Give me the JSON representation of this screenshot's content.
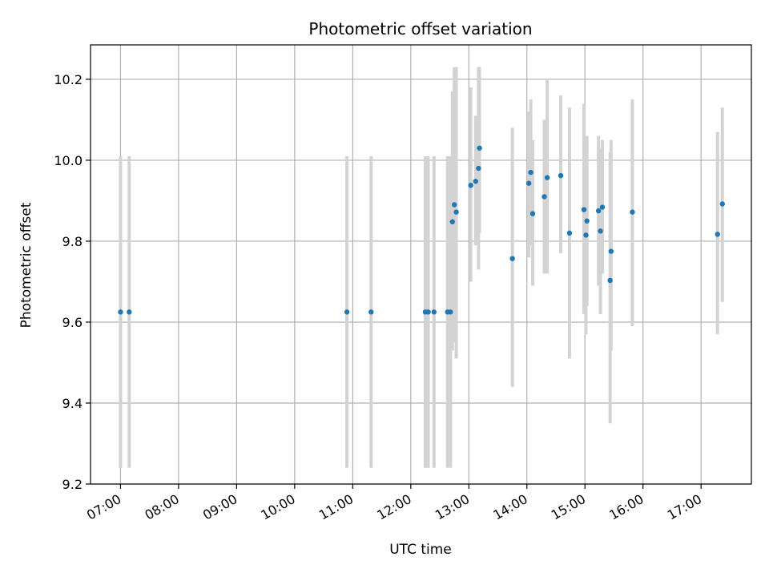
{
  "chart_data": {
    "type": "scatter",
    "title": "Photometric offset variation",
    "xlabel": "UTC time",
    "ylabel": "Photometric offset",
    "x_ticks": [
      "07:00",
      "08:00",
      "09:00",
      "10:00",
      "11:00",
      "12:00",
      "13:00",
      "14:00",
      "15:00",
      "16:00",
      "17:00"
    ],
    "y_ticks": [
      "9.2",
      "9.4",
      "9.6",
      "9.8",
      "10.0",
      "10.2"
    ],
    "xlim": [
      "06:29",
      "17:52"
    ],
    "ylim": [
      9.2,
      10.285
    ],
    "grid": true,
    "colors": {
      "points": "#1f77b4",
      "errorbars": "#d3d3d3",
      "grid": "#b0b0b0"
    },
    "points": [
      {
        "x": "07:00",
        "y": 9.625,
        "ylow": 9.24,
        "yhigh": 10.01
      },
      {
        "x": "07:09",
        "y": 9.625,
        "ylow": 9.24,
        "yhigh": 10.01
      },
      {
        "x": "10:54",
        "y": 9.625,
        "ylow": 9.24,
        "yhigh": 10.01
      },
      {
        "x": "11:19",
        "y": 9.625,
        "ylow": 9.24,
        "yhigh": 10.01
      },
      {
        "x": "12:15",
        "y": 9.625,
        "ylow": 9.24,
        "yhigh": 10.01
      },
      {
        "x": "12:18",
        "y": 9.625,
        "ylow": 9.24,
        "yhigh": 10.01
      },
      {
        "x": "12:24",
        "y": 9.625,
        "ylow": 9.24,
        "yhigh": 10.01
      },
      {
        "x": "12:38",
        "y": 9.625,
        "ylow": 9.24,
        "yhigh": 10.01
      },
      {
        "x": "12:41",
        "y": 9.625,
        "ylow": 9.24,
        "yhigh": 10.01
      },
      {
        "x": "12:43",
        "y": 9.848,
        "ylow": 9.53,
        "yhigh": 10.17
      },
      {
        "x": "12:45",
        "y": 9.89,
        "ylow": 9.55,
        "yhigh": 10.23
      },
      {
        "x": "12:47",
        "y": 9.872,
        "ylow": 9.51,
        "yhigh": 10.23
      },
      {
        "x": "13:02",
        "y": 9.938,
        "ylow": 9.7,
        "yhigh": 10.18
      },
      {
        "x": "13:07",
        "y": 9.948,
        "ylow": 9.79,
        "yhigh": 10.11
      },
      {
        "x": "13:10",
        "y": 9.98,
        "ylow": 9.73,
        "yhigh": 10.23
      },
      {
        "x": "13:11",
        "y": 10.03,
        "ylow": 9.82,
        "yhigh": 10.23
      },
      {
        "x": "13:45",
        "y": 9.757,
        "ylow": 9.44,
        "yhigh": 10.08
      },
      {
        "x": "14:02",
        "y": 9.943,
        "ylow": 9.76,
        "yhigh": 10.12
      },
      {
        "x": "14:04",
        "y": 9.97,
        "ylow": 9.79,
        "yhigh": 10.15
      },
      {
        "x": "14:06",
        "y": 9.868,
        "ylow": 9.69,
        "yhigh": 10.05
      },
      {
        "x": "14:18",
        "y": 9.91,
        "ylow": 9.72,
        "yhigh": 10.1
      },
      {
        "x": "14:21",
        "y": 9.957,
        "ylow": 9.72,
        "yhigh": 10.2
      },
      {
        "x": "14:35",
        "y": 9.962,
        "ylow": 9.77,
        "yhigh": 10.16
      },
      {
        "x": "14:44",
        "y": 9.82,
        "ylow": 9.51,
        "yhigh": 10.13
      },
      {
        "x": "14:59",
        "y": 9.878,
        "ylow": 9.62,
        "yhigh": 10.14
      },
      {
        "x": "15:01",
        "y": 9.815,
        "ylow": 9.57,
        "yhigh": 10.06
      },
      {
        "x": "15:02",
        "y": 9.85,
        "ylow": 9.64,
        "yhigh": 10.06
      },
      {
        "x": "15:14",
        "y": 9.875,
        "ylow": 9.69,
        "yhigh": 10.06
      },
      {
        "x": "15:16",
        "y": 9.825,
        "ylow": 9.62,
        "yhigh": 10.03
      },
      {
        "x": "15:18",
        "y": 9.884,
        "ylow": 9.72,
        "yhigh": 10.05
      },
      {
        "x": "15:26",
        "y": 9.703,
        "ylow": 9.35,
        "yhigh": 10.02
      },
      {
        "x": "15:27",
        "y": 9.775,
        "ylow": 9.53,
        "yhigh": 10.05
      },
      {
        "x": "15:49",
        "y": 9.872,
        "ylow": 9.59,
        "yhigh": 10.15
      },
      {
        "x": "17:17",
        "y": 9.817,
        "ylow": 9.57,
        "yhigh": 10.07
      },
      {
        "x": "17:22",
        "y": 9.892,
        "ylow": 9.65,
        "yhigh": 10.13
      }
    ]
  }
}
